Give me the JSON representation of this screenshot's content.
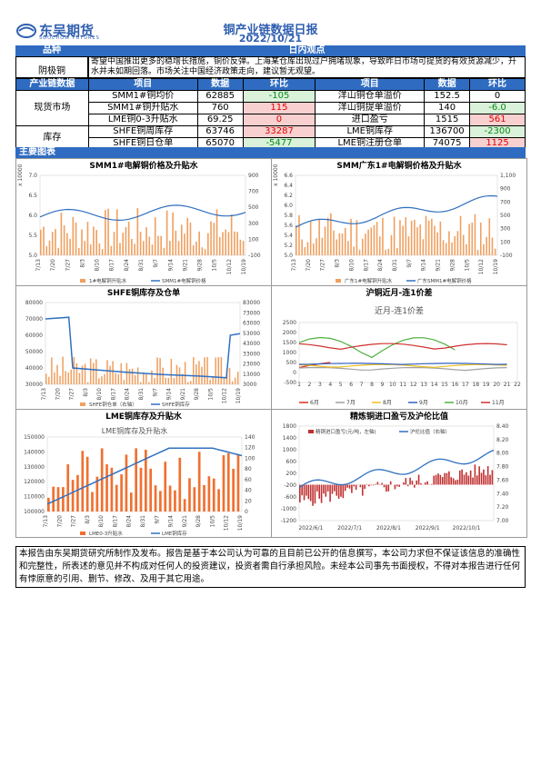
{
  "logo": {
    "cn": "东吴期货",
    "en": "SOOCHOW FUTURES"
  },
  "title": "铜产业链数据日报",
  "date": "2022/10/21",
  "section_variety": "品种",
  "section_view": "日内观点",
  "variety": "阴极铜",
  "view_text": "寄望中国推出更多的稳增长措施，铜价反弹。上海某仓库出现过户拥堵现象，导致昨日市场可提货的有效货源减少，升水并未如期回落。市场关注中国经济政策走向，建议暂无观望。",
  "table": {
    "headers": [
      "产业链数据",
      "项目",
      "数据",
      "环比",
      "项目",
      "数据",
      "环比"
    ],
    "groups": [
      {
        "label": "现货市场",
        "rows": [
          {
            "item1": "SMM1#铜均价",
            "v1": "62885",
            "c1": "-105",
            "c1s": "g",
            "item2": "洋山铜仓单溢价",
            "v2": "152.5",
            "c2": "0",
            "c2s": ""
          },
          {
            "item1": "SMM1#铜升贴水",
            "v1": "760",
            "c1": "115",
            "c1s": "r",
            "item2": "洋山铜提单溢价",
            "v2": "140",
            "c2": "-6.0",
            "c2s": "g"
          },
          {
            "item1": "LME铜0-3升贴水",
            "v1": "69.25",
            "c1": "0",
            "c1s": "r",
            "item2": "进口盈亏",
            "v2": "1515",
            "c2": "561",
            "c2s": "r"
          }
        ]
      },
      {
        "label": "库存",
        "rows": [
          {
            "item1": "SHFE铜周库存",
            "v1": "63746",
            "c1": "33287",
            "c1s": "r",
            "item2": "LME铜库存",
            "v2": "136700",
            "c2": "-2300",
            "c2s": "g"
          },
          {
            "item1": "SHFE铜日仓单",
            "v1": "65070",
            "c1": "-5477",
            "c1s": "g",
            "item2": "LME铜注册仓单",
            "v2": "74075",
            "c2": "1125",
            "c2s": "r"
          }
        ]
      }
    ]
  },
  "section_charts": "主要图表",
  "charts": {
    "c1": {
      "title": "SMM1#电解铜价格及升贴水",
      "unit": "x 10000",
      "left_ticks": [
        "7.0",
        "6.5",
        "6.0",
        "5.5",
        "5.0"
      ],
      "right_ticks": [
        "900",
        "700",
        "500",
        "300",
        "100",
        "-100"
      ],
      "x_ticks": [
        "7/13",
        "7/20",
        "7/27",
        "8/3",
        "8/10",
        "8/17",
        "8/24",
        "8/31",
        "9/7",
        "9/14",
        "9/21",
        "9/28",
        "10/5",
        "10/12",
        "10/19"
      ],
      "legend": [
        "1#电解铜升贴水",
        "SMM1#电解铜价格"
      ]
    },
    "c2": {
      "title": "SMM广东1#电解铜价格及升贴水",
      "unit": "x 10000",
      "left_ticks": [
        "6.6",
        "6.4",
        "6.2",
        "6.0",
        "5.8",
        "5.6",
        "5.4",
        "5.2",
        "5.0"
      ],
      "right_ticks": [
        "1,100",
        "900",
        "700",
        "500",
        "300",
        "100",
        "-100"
      ],
      "x_ticks": [
        "7/13",
        "7/20",
        "7/27",
        "8/3",
        "8/10",
        "8/17",
        "8/24",
        "8/31",
        "9/7",
        "9/14",
        "9/21",
        "9/28",
        "10/5",
        "10/12",
        "10/19"
      ],
      "legend": [
        "广东1#电解铜升贴水",
        "广东SMM1#电解铜价格"
      ]
    },
    "c3": {
      "title": "SHFE铜库存及仓单",
      "left_ticks": [
        "80000",
        "70000",
        "60000",
        "50000",
        "40000",
        "30000"
      ],
      "right_ticks": [
        "83000",
        "73000",
        "63000",
        "53000",
        "43000",
        "33000",
        "23000",
        "13000",
        "3000"
      ],
      "x_ticks": [
        "7/13",
        "7/20",
        "7/27",
        "8/3",
        "8/10",
        "8/17",
        "8/24",
        "8/31",
        "9/7",
        "9/14",
        "9/21",
        "9/28",
        "10/5",
        "10/12",
        "10/19"
      ],
      "legend": [
        "SHFE铜仓单（右轴）",
        "SHFE铜库存"
      ]
    },
    "c4": {
      "title": "沪铜近月-连1价差",
      "inner_title": "近月-连1价差",
      "left_ticks": [
        "2500",
        "2000",
        "1500",
        "1000",
        "500",
        "0",
        "-500"
      ],
      "x_ticks": [
        "1",
        "3",
        "5",
        "7",
        "9",
        "11",
        "13",
        "15",
        "17",
        "19",
        "21"
      ],
      "x_extra": [
        "2",
        "4",
        "6",
        "8",
        "10",
        "12",
        "14",
        "16",
        "18",
        "20",
        "22"
      ],
      "legend": [
        "6月",
        "7月",
        "8月",
        "9月",
        "10月",
        "11月"
      ],
      "colors": [
        "#e03020",
        "#a0a0a0",
        "#f0c020",
        "#3060c0",
        "#50b040",
        "#d03030"
      ]
    },
    "c5": {
      "title": "LME铜库存及升贴水",
      "inner_title": "LME铜库存及升贴水",
      "left_ticks": [
        "150000",
        "140000",
        "130000",
        "120000",
        "110000",
        "100000"
      ],
      "right_ticks": [
        "140",
        "120",
        "100",
        "80",
        "60",
        "40",
        "20",
        "0"
      ],
      "x_ticks": [
        "7/13",
        "7/20",
        "7/27",
        "8/3",
        "8/10",
        "8/17",
        "8/24",
        "8/31",
        "9/7",
        "9/14",
        "9/21",
        "9/28",
        "10/5",
        "10/12",
        "10/19"
      ],
      "legend": [
        "LME0-3升贴水",
        "LME铜库存"
      ]
    },
    "c6": {
      "title": "精炼铜进口盈亏及沪伦比值",
      "left_ticks": [
        "1800",
        "1400",
        "1000",
        "600",
        "200",
        "-200",
        "-600",
        "-1000",
        "-1200"
      ],
      "right_ticks": [
        "8.40",
        "8.20",
        "8.00",
        "7.80",
        "7.60",
        "7.40",
        "7.20",
        "7.00"
      ],
      "x_ticks": [
        "2022/6/1",
        "2022/7/1",
        "2022/8/1",
        "2022/9/1",
        "2022/10/1"
      ],
      "legend": [
        "精铜进口盈亏(元/吨，左轴)",
        "沪伦比值（右轴）"
      ]
    }
  },
  "disclaimer": "本报告由东吴期货研究所制作及发布。报告是基于本公司认为可靠的且目前已公开的信息撰写，本公司力求但不保证该信息的准确性和完整性，所表述的意见并不构成对任何人的投资建议，投资者需自行承担风险。未经本公司事先书面授权，不得对本报告进行任何有悖原意的引用、删节、修改、及用于其它用途。"
}
